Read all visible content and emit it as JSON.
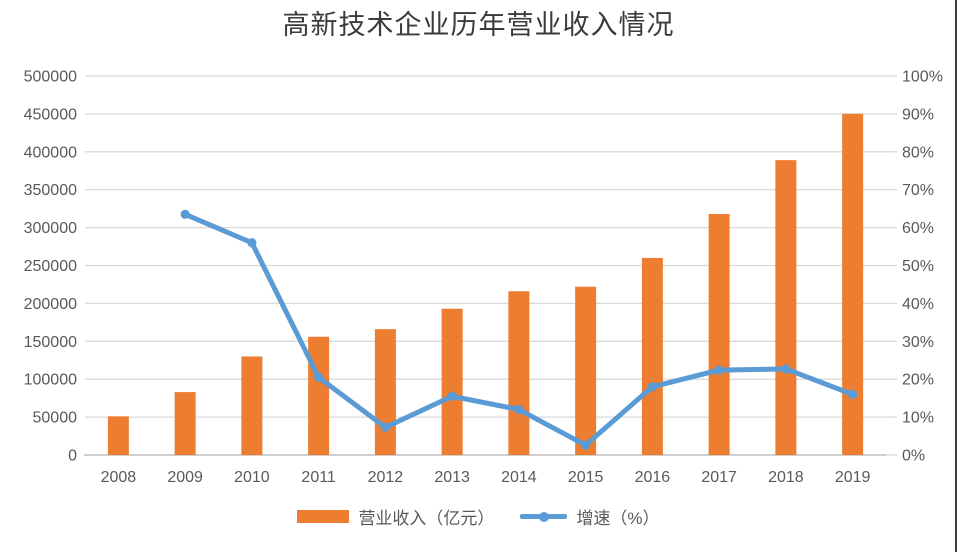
{
  "page": {
    "background": "#ffffff",
    "right_border_color": "#3f3f3f"
  },
  "chart_data": {
    "type": "bar",
    "title": "高新技术企业历年营业收入情况",
    "categories": [
      "2008",
      "2009",
      "2010",
      "2011",
      "2012",
      "2013",
      "2014",
      "2015",
      "2016",
      "2017",
      "2018",
      "2019"
    ],
    "series": [
      {
        "name": "营业收入（亿元）",
        "type": "bar",
        "axis": "left",
        "color": "#ED7D31",
        "values": [
          51000,
          83000,
          130000,
          156000,
          166000,
          193000,
          216000,
          222000,
          260000,
          318000,
          389000,
          450000
        ]
      },
      {
        "name": "增速（%）",
        "type": "line",
        "axis": "right",
        "color": "#5B9BD5",
        "values": [
          null,
          63.5,
          56,
          20.5,
          7.3,
          15.5,
          12,
          2.6,
          18,
          22.4,
          22.7,
          16
        ]
      }
    ],
    "left_axis": {
      "min": 0,
      "max": 500000,
      "step": 50000,
      "suffix": ""
    },
    "right_axis": {
      "min": 0,
      "max": 100,
      "step": 10,
      "suffix": "%"
    },
    "grid": true,
    "legend_position": "bottom",
    "colors": {
      "bar": "#ED7D31",
      "line": "#5B9BD5",
      "gridline": "#D9D9D9",
      "axis_line": "#BFBFBF",
      "tick": "#D9D9D9",
      "axis_text": "#595959",
      "title_text": "#3B3B3B"
    }
  }
}
